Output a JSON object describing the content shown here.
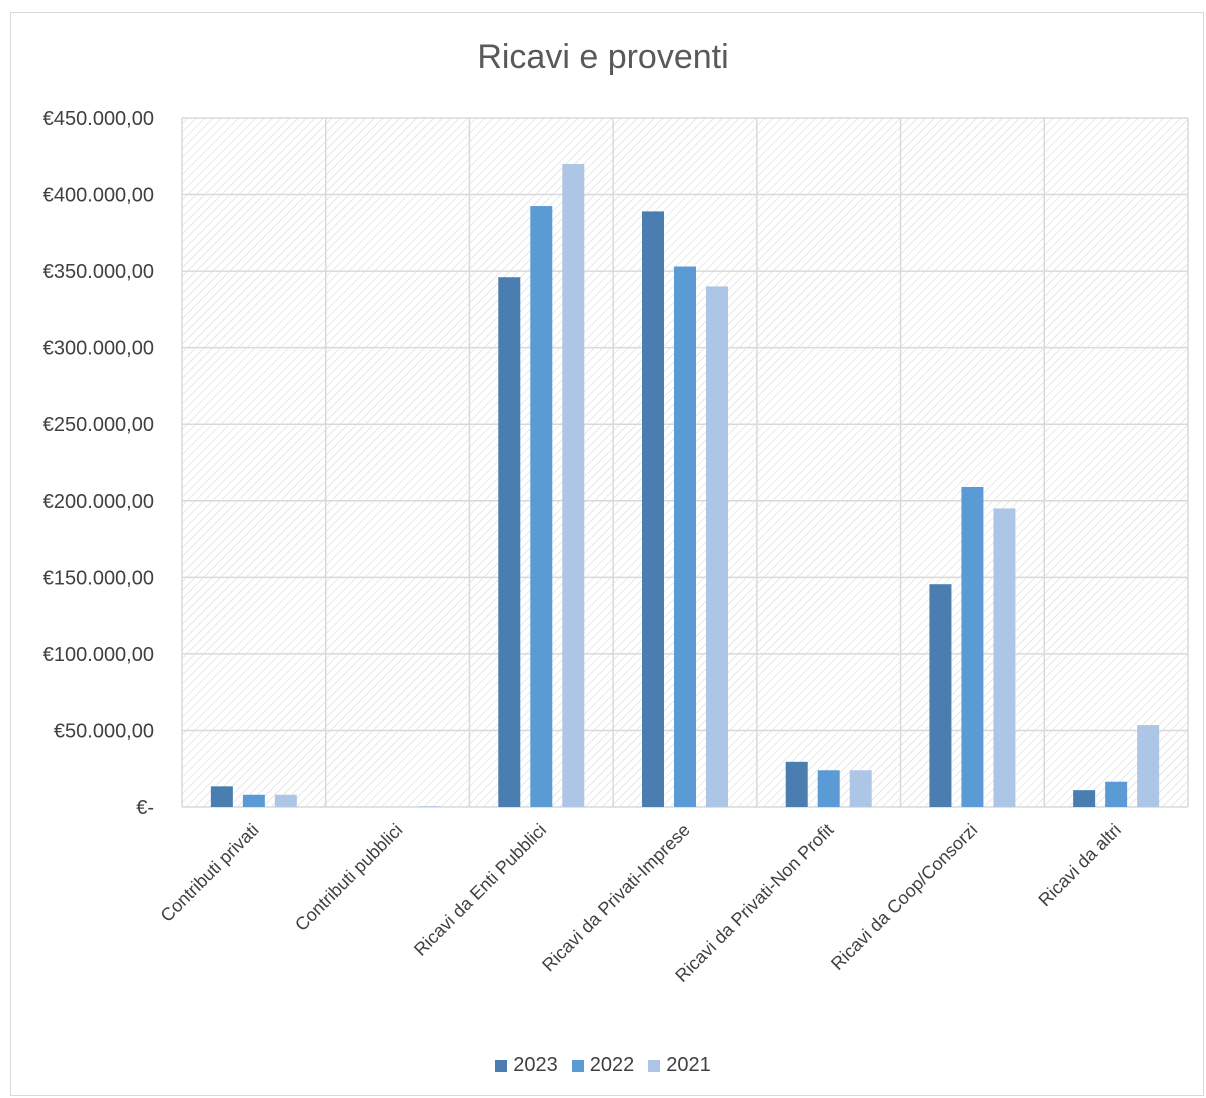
{
  "chart_data": {
    "type": "bar",
    "title": "Ricavi e proventi",
    "categories": [
      "Contributi privati",
      "Contributi pubblici",
      "Ricavi da Enti Pubblici",
      "Ricavi da Privati-Imprese",
      "Ricavi da Privati-Non Profit",
      "Ricavi da Coop/Consorzi",
      "Ricavi da altri"
    ],
    "series": [
      {
        "name": "2023",
        "color": "#4a7eb0",
        "values": [
          13500,
          0,
          346000,
          389000,
          29500,
          145500,
          11000
        ]
      },
      {
        "name": "2022",
        "color": "#5b9bd5",
        "values": [
          8000,
          0,
          392500,
          353000,
          24000,
          209000,
          16500
        ]
      },
      {
        "name": "2021",
        "color": "#aec6e6",
        "values": [
          8000,
          500,
          420000,
          340000,
          24000,
          195000,
          53500
        ]
      }
    ],
    "ylim": [
      0,
      450000
    ],
    "yticks": [
      0,
      50000,
      100000,
      150000,
      200000,
      250000,
      300000,
      350000,
      400000,
      450000
    ],
    "ytick_labels": [
      "€-",
      "€50.000,00",
      "€100.000,00",
      "€150.000,00",
      "€200.000,00",
      "€250.000,00",
      "€300.000,00",
      "€350.000,00",
      "€400.000,00",
      "€450.000,00"
    ],
    "grid": true,
    "legend_position": "bottom"
  }
}
